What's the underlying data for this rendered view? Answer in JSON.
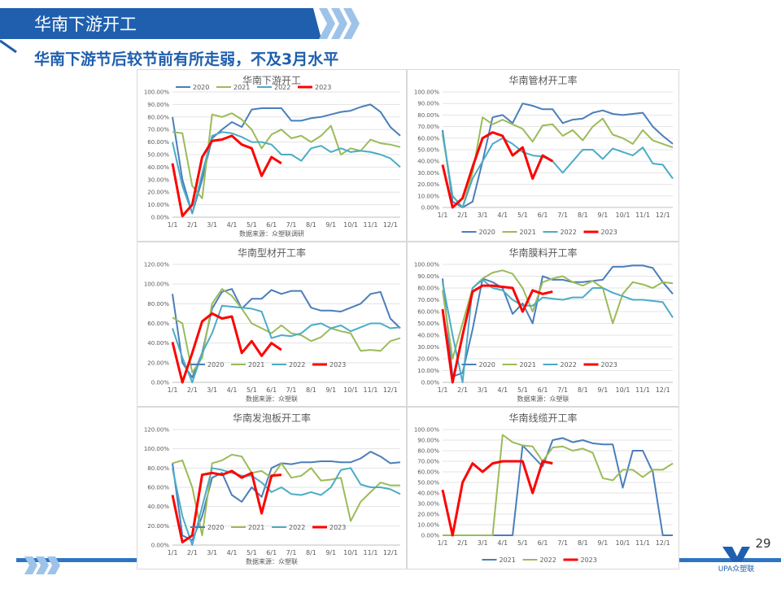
{
  "header": {
    "title": "华南下游开工",
    "subtitle": "华南下游节后较节前有所走弱，不及3月水平"
  },
  "page_number": "29",
  "logo": "UPA众塑联",
  "chart_data": [
    {
      "type": "line",
      "title": "华南下游开工",
      "source": "数据来源：众塑联调研",
      "legend": "upper left",
      "grid": true,
      "categories": [
        "1/1",
        null,
        "2/1",
        null,
        "3/1",
        null,
        "4/1",
        null,
        "5/1",
        null,
        "6/1",
        null,
        "7/1",
        null,
        "8/1",
        null,
        "9/1",
        null,
        "10/1",
        null,
        "11/1",
        null,
        "12/1",
        null
      ],
      "ylim": [
        0,
        100
      ],
      "yticks": [
        {
          "value": 0,
          "label": "0.00%"
        },
        {
          "value": 10,
          "label": "10.00%"
        },
        {
          "value": 20,
          "label": "20.00%"
        },
        {
          "value": 30,
          "label": "30.00%"
        },
        {
          "value": 40,
          "label": "40.00%"
        },
        {
          "value": 50,
          "label": "50.00%"
        },
        {
          "value": 60,
          "label": "60.00%"
        },
        {
          "value": 70,
          "label": "70.00%"
        },
        {
          "value": 80,
          "label": "80.00%"
        },
        {
          "value": 90,
          "label": "90.00%"
        },
        {
          "value": 100,
          "label": "100.00%"
        }
      ],
      "series": [
        {
          "name": "2020",
          "color": "#4a7ebb",
          "values": [
            80,
            30,
            3,
            30,
            63,
            70,
            76,
            72,
            86,
            87,
            87,
            87,
            77,
            77,
            79,
            80,
            82,
            84,
            85,
            88,
            90,
            84,
            72,
            65
          ]
        },
        {
          "name": "2021",
          "color": "#9bbb59",
          "values": [
            68,
            67,
            25,
            15,
            82,
            80,
            83,
            78,
            70,
            55,
            66,
            70,
            63,
            65,
            60,
            65,
            73,
            50,
            55,
            53,
            62,
            59,
            58,
            56
          ]
        },
        {
          "name": "2022",
          "color": "#4bacc6",
          "values": [
            60,
            25,
            3,
            35,
            65,
            68,
            67,
            64,
            60,
            60,
            58,
            50,
            50,
            45,
            55,
            57,
            52,
            55,
            52,
            53,
            52,
            50,
            47,
            40
          ]
        },
        {
          "name": "2023",
          "color": "#ff0000",
          "values": [
            43,
            1,
            10,
            48,
            61,
            62,
            65,
            58,
            55,
            33,
            48,
            43,
            null,
            null,
            null,
            null,
            null,
            null,
            null,
            null,
            null,
            null,
            null,
            null
          ]
        }
      ]
    },
    {
      "type": "line",
      "title": "华南管材开工率",
      "legend": "bottom",
      "grid": true,
      "categories": [
        "1/1",
        null,
        "2/1",
        null,
        "3/1",
        null,
        "4/1",
        null,
        "5/1",
        null,
        "6/1",
        null,
        "7/1",
        null,
        "8/1",
        null,
        "9/1",
        null,
        "10/1",
        null,
        "11/1",
        null,
        "12/1",
        null
      ],
      "ylim": [
        0,
        100
      ],
      "yticks": [
        {
          "value": 0,
          "label": "0.00%"
        },
        {
          "value": 10,
          "label": "10.00%"
        },
        {
          "value": 20,
          "label": "20.00%"
        },
        {
          "value": 30,
          "label": "30.00%"
        },
        {
          "value": 40,
          "label": "40.00%"
        },
        {
          "value": 50,
          "label": "50.00%"
        },
        {
          "value": 60,
          "label": "60.00%"
        },
        {
          "value": 70,
          "label": "70.00%"
        },
        {
          "value": 80,
          "label": "80.00%"
        },
        {
          "value": 90,
          "label": "90.00%"
        },
        {
          "value": 100,
          "label": "100.00%"
        }
      ],
      "series": [
        {
          "name": "2020",
          "color": "#4a7ebb",
          "values": [
            67,
            5,
            0,
            5,
            40,
            78,
            80,
            73,
            90,
            88,
            85,
            85,
            73,
            76,
            77,
            82,
            84,
            81,
            80,
            81,
            82,
            70,
            62,
            55
          ]
        },
        {
          "name": "2021",
          "color": "#9bbb59",
          "values": [
            63,
            10,
            0,
            30,
            78,
            72,
            76,
            72,
            68,
            57,
            71,
            72,
            62,
            67,
            58,
            70,
            77,
            63,
            60,
            55,
            67,
            58,
            55,
            52
          ]
        },
        {
          "name": "2022",
          "color": "#4bacc6",
          "values": [
            65,
            10,
            0,
            25,
            40,
            55,
            60,
            55,
            48,
            45,
            44,
            40,
            30,
            40,
            50,
            50,
            42,
            51,
            48,
            45,
            52,
            38,
            37,
            25
          ]
        },
        {
          "name": "2023",
          "color": "#ff0000",
          "values": [
            37,
            0,
            8,
            35,
            60,
            65,
            62,
            45,
            52,
            25,
            45,
            40,
            null,
            null,
            null,
            null,
            null,
            null,
            null,
            null,
            null,
            null,
            null,
            null
          ]
        }
      ]
    },
    {
      "type": "line",
      "title": "华南型材开工率",
      "source": "数据来源：众塑联",
      "legend": "lower center",
      "grid": true,
      "categories": [
        "1/1",
        null,
        "2/1",
        null,
        "3/1",
        null,
        "4/1",
        null,
        "5/1",
        null,
        "6/1",
        null,
        "7/1",
        null,
        "8/1",
        null,
        "9/1",
        null,
        "10/1",
        null,
        "11/1",
        null,
        "12/1",
        null
      ],
      "ylim": [
        0,
        120
      ],
      "yticks": [
        {
          "value": 0,
          "label": "0.00%"
        },
        {
          "value": 20,
          "label": "20.00%"
        },
        {
          "value": 40,
          "label": "40.00%"
        },
        {
          "value": 60,
          "label": "60.00%"
        },
        {
          "value": 80,
          "label": "80.00%"
        },
        {
          "value": 100,
          "label": "100.00%"
        },
        {
          "value": 120,
          "label": "120.00%"
        }
      ],
      "series": [
        {
          "name": "2020",
          "color": "#4a7ebb",
          "values": [
            90,
            20,
            5,
            30,
            75,
            92,
            95,
            75,
            85,
            85,
            94,
            90,
            93,
            93,
            76,
            73,
            73,
            72,
            76,
            80,
            90,
            92,
            65,
            55
          ]
        },
        {
          "name": "2021",
          "color": "#9bbb59",
          "values": [
            66,
            60,
            10,
            25,
            80,
            95,
            88,
            75,
            60,
            55,
            50,
            58,
            50,
            48,
            42,
            46,
            55,
            52,
            50,
            32,
            33,
            32,
            42,
            45
          ]
        },
        {
          "name": "2022",
          "color": "#4bacc6",
          "values": [
            55,
            25,
            0,
            30,
            50,
            78,
            77,
            76,
            75,
            72,
            45,
            48,
            47,
            50,
            58,
            60,
            55,
            58,
            52,
            56,
            60,
            60,
            55,
            56
          ]
        },
        {
          "name": "2023",
          "color": "#ff0000",
          "values": [
            41,
            0,
            30,
            62,
            70,
            65,
            67,
            30,
            42,
            27,
            40,
            33,
            null,
            null,
            null,
            null,
            null,
            null,
            null,
            null,
            null,
            null,
            null,
            null
          ]
        }
      ]
    },
    {
      "type": "line",
      "title": "华南膜料开工率",
      "source": "数据来源：众塑联",
      "legend": "lower center",
      "grid": true,
      "categories": [
        "1/1",
        null,
        "2/1",
        null,
        "3/1",
        null,
        "4/1",
        null,
        "5/1",
        null,
        "6/1",
        null,
        "7/1",
        null,
        "8/1",
        null,
        "9/1",
        null,
        "10/1",
        null,
        "11/1",
        null,
        "12/1",
        null
      ],
      "ylim": [
        0,
        100
      ],
      "yticks": [
        {
          "value": 0,
          "label": "0.00%"
        },
        {
          "value": 10,
          "label": "10.00%"
        },
        {
          "value": 20,
          "label": "20.00%"
        },
        {
          "value": 30,
          "label": "30.00%"
        },
        {
          "value": 40,
          "label": "40.00%"
        },
        {
          "value": 50,
          "label": "50.00%"
        },
        {
          "value": 60,
          "label": "60.00%"
        },
        {
          "value": 70,
          "label": "70.00%"
        },
        {
          "value": 80,
          "label": "80.00%"
        },
        {
          "value": 90,
          "label": "90.00%"
        },
        {
          "value": 100,
          "label": "100.00%"
        }
      ],
      "series": [
        {
          "name": "2020",
          "color": "#4a7ebb",
          "values": [
            88,
            5,
            8,
            45,
            88,
            85,
            80,
            58,
            67,
            50,
            90,
            87,
            87,
            85,
            85,
            86,
            87,
            98,
            98,
            99,
            99,
            97,
            85,
            75
          ]
        },
        {
          "name": "2021",
          "color": "#9bbb59",
          "values": [
            78,
            20,
            50,
            80,
            88,
            93,
            95,
            92,
            80,
            60,
            85,
            88,
            90,
            85,
            82,
            86,
            80,
            50,
            75,
            85,
            83,
            80,
            85,
            84
          ]
        },
        {
          "name": "2022",
          "color": "#4bacc6",
          "values": [
            85,
            40,
            0,
            80,
            87,
            80,
            78,
            70,
            65,
            65,
            72,
            71,
            70,
            72,
            72,
            80,
            80,
            76,
            73,
            70,
            70,
            69,
            68,
            55
          ]
        },
        {
          "name": "2023",
          "color": "#ff0000",
          "values": [
            62,
            0,
            40,
            77,
            82,
            82,
            81,
            80,
            60,
            78,
            75,
            77,
            null,
            null,
            null,
            null,
            null,
            null,
            null,
            null,
            null,
            null,
            null,
            null
          ]
        }
      ]
    },
    {
      "type": "line",
      "title": "华南发泡板开工率",
      "source": "数据来源：众塑联",
      "legend": "lower center",
      "grid": true,
      "categories": [
        "1/1",
        null,
        "2/1",
        null,
        "3/1",
        null,
        "4/1",
        null,
        "5/1",
        null,
        "6/1",
        null,
        "7/1",
        null,
        "8/1",
        null,
        "9/1",
        null,
        "10/1",
        null,
        "11/1",
        null,
        "12/1",
        null
      ],
      "ylim": [
        0,
        120
      ],
      "yticks": [
        {
          "value": 0,
          "label": "0.00%"
        },
        {
          "value": 20,
          "label": "20.00%"
        },
        {
          "value": 40,
          "label": "40.00%"
        },
        {
          "value": 60,
          "label": "60.00%"
        },
        {
          "value": 80,
          "label": "80.00%"
        },
        {
          "value": 100,
          "label": "100.00%"
        },
        {
          "value": 120,
          "label": "120.00%"
        }
      ],
      "series": [
        {
          "name": "2020",
          "color": "#4a7ebb",
          "values": [
            85,
            10,
            5,
            30,
            70,
            75,
            52,
            45,
            60,
            50,
            80,
            85,
            84,
            86,
            86,
            87,
            87,
            86,
            86,
            90,
            97,
            92,
            85,
            86
          ]
        },
        {
          "name": "2021",
          "color": "#9bbb59",
          "values": [
            85,
            88,
            60,
            10,
            85,
            88,
            94,
            92,
            75,
            77,
            70,
            85,
            70,
            72,
            80,
            67,
            68,
            70,
            25,
            45,
            55,
            65,
            62,
            62
          ]
        },
        {
          "name": "2022",
          "color": "#4bacc6",
          "values": [
            80,
            30,
            0,
            40,
            80,
            78,
            75,
            72,
            72,
            65,
            55,
            60,
            53,
            52,
            55,
            52,
            60,
            78,
            80,
            63,
            60,
            60,
            58,
            53
          ]
        },
        {
          "name": "2023",
          "color": "#ff0000",
          "values": [
            52,
            3,
            10,
            73,
            75,
            73,
            77,
            70,
            75,
            33,
            72,
            73,
            null,
            null,
            null,
            null,
            null,
            null,
            null,
            null,
            null,
            null,
            null,
            null
          ]
        }
      ]
    },
    {
      "type": "line",
      "title": "华南线缆开工率",
      "legend": "bottom",
      "grid": true,
      "categories": [
        "1/1",
        null,
        "2/1",
        null,
        "3/1",
        null,
        "4/1",
        null,
        "5/1",
        null,
        "6/1",
        null,
        "7/1",
        null,
        "8/1",
        null,
        "9/1",
        null,
        "10/1",
        null,
        "11/1",
        null,
        "12/1",
        null
      ],
      "ylim": [
        0,
        100
      ],
      "yticks": [
        {
          "value": 0,
          "label": "0.00%"
        },
        {
          "value": 10,
          "label": "10.00%"
        },
        {
          "value": 20,
          "label": "20.00%"
        },
        {
          "value": 30,
          "label": "30.00%"
        },
        {
          "value": 40,
          "label": "40.00%"
        },
        {
          "value": 50,
          "label": "50.00%"
        },
        {
          "value": 60,
          "label": "60.00%"
        },
        {
          "value": 70,
          "label": "70.00%"
        },
        {
          "value": 80,
          "label": "80.00%"
        },
        {
          "value": 90,
          "label": "90.00%"
        },
        {
          "value": 100,
          "label": "100.00%"
        }
      ],
      "series": [
        {
          "name": "2021",
          "color": "#4a7ebb",
          "values": [
            0,
            0,
            0,
            0,
            0,
            0,
            0,
            0,
            85,
            75,
            65,
            90,
            92,
            88,
            90,
            87,
            86,
            86,
            45,
            80,
            80,
            60,
            0,
            0
          ]
        },
        {
          "name": "2022",
          "color": "#9bbb59",
          "values": [
            0,
            0,
            0,
            0,
            0,
            0,
            95,
            88,
            85,
            84,
            70,
            83,
            84,
            80,
            82,
            78,
            54,
            52,
            62,
            62,
            55,
            62,
            62,
            68
          ]
        },
        {
          "name": "2023",
          "color": "#ff0000",
          "values": [
            43,
            0,
            50,
            68,
            60,
            68,
            70,
            70,
            70,
            40,
            70,
            68,
            null,
            null,
            null,
            null,
            null,
            null,
            null,
            null,
            null,
            null,
            null,
            null
          ]
        }
      ]
    }
  ]
}
